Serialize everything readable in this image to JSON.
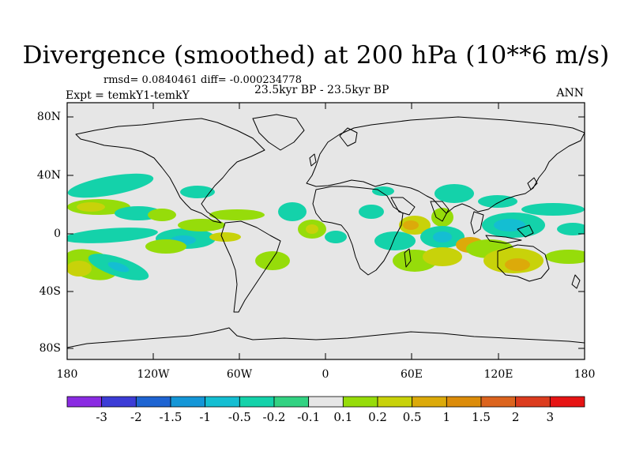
{
  "title": "Divergence (smoothed) at 200 hPa (10**6 m/s)",
  "stats": "rmsd= 0.0840461  diff= -0.000234778",
  "experiment": "Expt = temkY1-temkY",
  "period": "23.5kyr BP - 23.5kyr BP",
  "season": "ANN",
  "lat_labels": [
    "80N",
    "40N",
    "0",
    "40S",
    "80S"
  ],
  "lon_labels": [
    "180",
    "120W",
    "60W",
    "0",
    "60E",
    "120E",
    "180"
  ],
  "colorbar": {
    "labels": [
      "-3",
      "-2",
      "-1.5",
      "-1",
      "-0.5",
      "-0.2",
      "-0.1",
      "0.1",
      "0.2",
      "0.5",
      "1",
      "1.5",
      "2",
      "3"
    ],
    "colors": [
      "#8a2be2",
      "#3c3cd6",
      "#1e64d2",
      "#1496d7",
      "#14bed2",
      "#14d2aa",
      "#32d282",
      "#e6e6e6",
      "#96dc0a",
      "#c8d20a",
      "#dcaa0a",
      "#dc8c0a",
      "#dc641e",
      "#dc3c1e",
      "#e61414"
    ]
  },
  "colors": {
    "ocean": "#e6e6e6",
    "coast": "#000000"
  }
}
